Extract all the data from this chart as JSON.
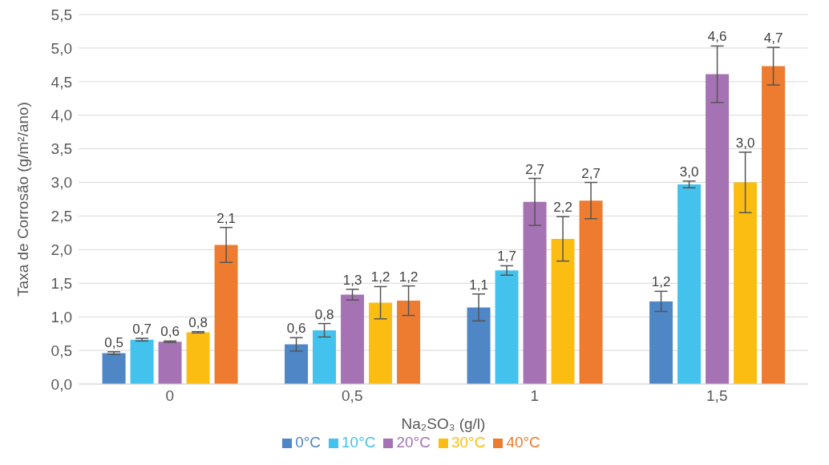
{
  "chart_data": {
    "type": "bar",
    "xlabel": "Na₂SO₃ (g/l)",
    "ylabel": "Taxa de Corrosão (g/m²/ano)",
    "categories": [
      "0",
      "0,5",
      "1",
      "1,5"
    ],
    "series": [
      {
        "name": "0°C",
        "color": "#4e86c6",
        "values": [
          0.46,
          0.59,
          1.14,
          1.23
        ],
        "errors": [
          0.02,
          0.1,
          0.2,
          0.15
        ],
        "value_labels": [
          "0,5",
          "0,6",
          "1,1",
          "1,2"
        ]
      },
      {
        "name": "10°C",
        "color": "#43c2ee",
        "values": [
          0.66,
          0.8,
          1.69,
          2.97
        ],
        "errors": [
          0.02,
          0.1,
          0.07,
          0.05
        ],
        "value_labels": [
          "0,7",
          "0,8",
          "1,7",
          "3,0"
        ]
      },
      {
        "name": "20°C",
        "color": "#a573b4",
        "values": [
          0.63,
          1.33,
          2.71,
          4.61
        ],
        "errors": [
          0.01,
          0.08,
          0.35,
          0.42
        ],
        "value_labels": [
          "0,6",
          "1,3",
          "2,7",
          "4,6"
        ]
      },
      {
        "name": "30°C",
        "color": "#fcbd12",
        "values": [
          0.77,
          1.21,
          2.16,
          3.0
        ],
        "errors": [
          0.01,
          0.24,
          0.33,
          0.45
        ],
        "value_labels": [
          "0,8",
          "1,2",
          "2,2",
          "3,0"
        ]
      },
      {
        "name": "40°C",
        "color": "#ed7c31",
        "values": [
          2.07,
          1.24,
          2.73,
          4.73
        ],
        "errors": [
          0.26,
          0.22,
          0.27,
          0.28
        ],
        "value_labels": [
          "2,1",
          "1,2",
          "2,7",
          "4,7"
        ]
      }
    ],
    "ylim": [
      0,
      5.5
    ],
    "yticks": [
      {
        "value": 0,
        "label": "0,0"
      },
      {
        "value": 0.5,
        "label": "0,5"
      },
      {
        "value": 1,
        "label": "1,0"
      },
      {
        "value": 1.5,
        "label": "1,5"
      },
      {
        "value": 2,
        "label": "2,0"
      },
      {
        "value": 2.5,
        "label": "2,5"
      },
      {
        "value": 3,
        "label": "3,0"
      },
      {
        "value": 3.5,
        "label": "3,5"
      },
      {
        "value": 4,
        "label": "4,0"
      },
      {
        "value": 4.5,
        "label": "4,5"
      },
      {
        "value": 5,
        "label": "5,0"
      },
      {
        "value": 5.5,
        "label": "5,5"
      }
    ],
    "grid": "y",
    "legend": "bottom"
  }
}
